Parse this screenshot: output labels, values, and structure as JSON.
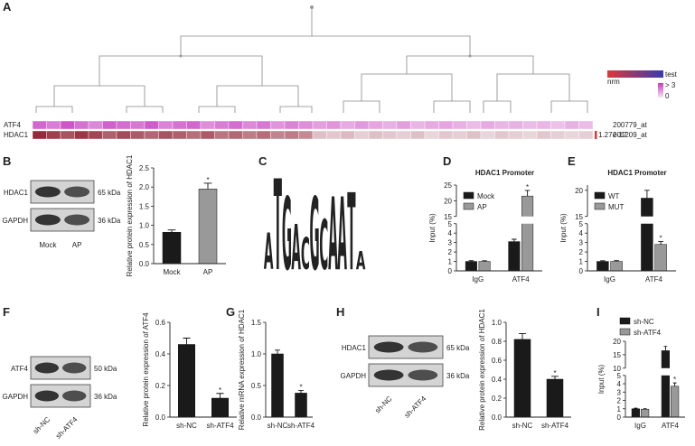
{
  "chart_data": [
    {
      "type": "heatmap",
      "panel": "A",
      "rows": [
        "ATF4",
        "HDAC1"
      ],
      "row_ids": [
        "200779_at",
        "201209_at"
      ],
      "values": [
        [
          2.2,
          1.8,
          2.5,
          2.0,
          1.6,
          2.3,
          2.1,
          1.9,
          2.4,
          1.7,
          2.0,
          2.2,
          1.5,
          1.8,
          2.1,
          1.6,
          1.9,
          1.4,
          1.7,
          1.5,
          1.2,
          1.4,
          1.0,
          1.3,
          1.1,
          0.9,
          1.2,
          0.8,
          1.0,
          1.1,
          0.9,
          0.7,
          1.0,
          0.8,
          0.9,
          0.7,
          0.8,
          0.6,
          0.9,
          0.7
        ],
        [
          2.8,
          2.5,
          2.2,
          2.6,
          2.4,
          2.0,
          2.3,
          2.1,
          1.9,
          2.2,
          2.0,
          1.8,
          2.1,
          1.7,
          1.9,
          1.6,
          1.8,
          1.5,
          1.6,
          1.4,
          0.6,
          0.5,
          0.7,
          0.4,
          0.6,
          0.5,
          0.4,
          0.6,
          0.3,
          0.5,
          0.4,
          0.6,
          0.3,
          0.5,
          0.4,
          0.3,
          0.5,
          0.4,
          0.3,
          0.4
        ]
      ],
      "vlim": [
        0,
        3
      ],
      "colors": [
        {
          "low": "#f7e3f4",
          "high": "#c43bbf"
        },
        {
          "low": "#f3eaee",
          "high": "#8c1d2d"
        }
      ],
      "legend_labels": [
        "nrm",
        "test"
      ],
      "legend_colors": [
        "#d93a3a",
        "#3a3ab0"
      ],
      "scale_labels": [
        "> 3",
        "0"
      ],
      "row_note": "1.27e-17"
    },
    {
      "type": "bar",
      "panel": "B",
      "blot": {
        "bands": [
          "HDAC1",
          "GAPDH"
        ],
        "sizes": [
          "65 kDa",
          "36 kDa"
        ],
        "lanes": [
          "Mock",
          "AP"
        ]
      },
      "ylabel": "Relative protein expression of HDAC1",
      "categories": [
        "Mock",
        "AP"
      ],
      "values": [
        0.82,
        1.95
      ],
      "errors": [
        0.06,
        0.15
      ],
      "colors": [
        "#1a1a1a",
        "#999999"
      ],
      "marks": [
        null,
        "*"
      ],
      "ylim": [
        0,
        2.5
      ],
      "yticks": [
        {
          "value": 0,
          "label": "0.0"
        },
        {
          "value": 0.5,
          "label": "0.5"
        },
        {
          "value": 1,
          "label": "1.0"
        },
        {
          "value": 1.5,
          "label": "1.5"
        },
        {
          "value": 2,
          "label": "2.0"
        },
        {
          "value": 2.5,
          "label": "2.5"
        }
      ]
    },
    {
      "type": "logo",
      "panel": "C",
      "letters": [
        "A",
        "T",
        "G",
        "A",
        "C",
        "G",
        "C",
        "A",
        "A",
        "T",
        "A"
      ],
      "heights": [
        0.8,
        2.0,
        1.6,
        1.0,
        0.7,
        1.6,
        1.1,
        1.6,
        1.6,
        1.7,
        0.4
      ],
      "ylim": [
        0,
        2
      ],
      "colors": {
        "A": "#7ab648",
        "C": "#3b6fb6",
        "G": "#f0a830",
        "T": "#e8342c"
      }
    },
    {
      "type": "grouped_bar",
      "panel": "D",
      "title": "HDAC1  Promoter",
      "ylabel": "Input (%)",
      "categories": [
        "IgG",
        "ATF4"
      ],
      "series": [
        {
          "name": "Mock",
          "color": "#1a1a1a",
          "values": [
            1.0,
            3.1
          ],
          "errors": [
            0.08,
            0.25
          ],
          "marks": [
            null,
            null
          ]
        },
        {
          "name": "AP",
          "color": "#999999",
          "values": [
            1.0,
            21.5
          ],
          "errors": [
            0.07,
            1.8
          ],
          "marks": [
            null,
            "*"
          ]
        }
      ],
      "ylim": [
        0,
        25
      ],
      "ybreak": [
        5,
        15
      ],
      "yticks": [
        0,
        1,
        2,
        3,
        4,
        5,
        15,
        20,
        25
      ],
      "legend": "upper left"
    },
    {
      "type": "grouped_bar",
      "panel": "E",
      "title": "HDAC1  Promoter",
      "ylabel": "Input (%)",
      "categories": [
        "IgG",
        "ATF4"
      ],
      "series": [
        {
          "name": "WT",
          "color": "#1a1a1a",
          "values": [
            1.0,
            18.5
          ],
          "errors": [
            0.07,
            1.5
          ],
          "marks": [
            null,
            null
          ]
        },
        {
          "name": "MUT",
          "color": "#999999",
          "values": [
            1.0,
            2.8
          ],
          "errors": [
            0.08,
            0.3
          ],
          "marks": [
            null,
            "*"
          ]
        }
      ],
      "ylim": [
        0,
        21
      ],
      "ybreak": [
        5,
        15
      ],
      "yticks": [
        0,
        1,
        2,
        3,
        4,
        5,
        15,
        20
      ],
      "legend": "upper left"
    },
    {
      "type": "bar",
      "panel": "F",
      "blot": {
        "bands": [
          "ATF4",
          "GAPDH"
        ],
        "sizes": [
          "50 kDa",
          "36 kDa"
        ],
        "lanes": [
          "sh-NC",
          "sh-ATF4"
        ]
      },
      "ylabel": "Relative protein expression of ATF4",
      "categories": [
        "sh-NC",
        "sh-ATF4"
      ],
      "values": [
        0.46,
        0.12
      ],
      "errors": [
        0.04,
        0.03
      ],
      "colors": [
        "#1a1a1a",
        "#1a1a1a"
      ],
      "marks": [
        null,
        "*"
      ],
      "ylim": [
        0,
        0.6
      ],
      "yticks": [
        {
          "value": 0,
          "label": "0.0"
        },
        {
          "value": 0.2,
          "label": "0.2"
        },
        {
          "value": 0.4,
          "label": "0.4"
        },
        {
          "value": 0.6,
          "label": "0.6"
        }
      ]
    },
    {
      "type": "bar",
      "panel": "G",
      "ylabel": "Relative mRNA expression of HDAC1",
      "categories": [
        "sh-NC",
        "sh-ATF4"
      ],
      "values": [
        1.0,
        0.38
      ],
      "errors": [
        0.06,
        0.04
      ],
      "colors": [
        "#1a1a1a",
        "#1a1a1a"
      ],
      "marks": [
        null,
        "*"
      ],
      "ylim": [
        0,
        1.5
      ],
      "yticks": [
        {
          "value": 0,
          "label": "0.0"
        },
        {
          "value": 0.5,
          "label": "0.5"
        },
        {
          "value": 1,
          "label": "1.0"
        },
        {
          "value": 1.5,
          "label": "1.5"
        }
      ]
    },
    {
      "type": "bar",
      "panel": "H",
      "blot": {
        "bands": [
          "HDAC1",
          "GAPDH"
        ],
        "sizes": [
          "65 kDa",
          "36 kDa"
        ],
        "lanes": [
          "sh-NC",
          "sh-ATF4"
        ]
      },
      "ylabel": "Relative protein expression of HDAC1",
      "categories": [
        "sh-NC",
        "sh-ATF4"
      ],
      "values": [
        0.82,
        0.4
      ],
      "errors": [
        0.06,
        0.03
      ],
      "colors": [
        "#1a1a1a",
        "#1a1a1a"
      ],
      "marks": [
        null,
        "*"
      ],
      "ylim": [
        0,
        1
      ],
      "yticks": [
        {
          "value": 0,
          "label": "0.0"
        },
        {
          "value": 0.2,
          "label": "0.2"
        },
        {
          "value": 0.4,
          "label": "0.4"
        },
        {
          "value": 0.6,
          "label": "0.6"
        },
        {
          "value": 0.8,
          "label": "0.8"
        },
        {
          "value": 1,
          "label": "1.0"
        }
      ]
    },
    {
      "type": "grouped_bar",
      "panel": "I",
      "ylabel": "Input (%)",
      "categories": [
        "IgG",
        "ATF4"
      ],
      "series": [
        {
          "name": "sh-NC",
          "color": "#1a1a1a",
          "values": [
            1.0,
            16.5
          ],
          "errors": [
            0.07,
            1.6
          ],
          "marks": [
            null,
            null
          ]
        },
        {
          "name": "sh-ATF4",
          "color": "#999999",
          "values": [
            0.95,
            3.7
          ],
          "errors": [
            0.05,
            0.4
          ],
          "marks": [
            null,
            "*"
          ]
        }
      ],
      "ylim": [
        0,
        20
      ],
      "ybreak": [
        5,
        10
      ],
      "yticks": [
        0,
        1,
        2,
        3,
        4,
        5,
        10,
        15,
        20
      ],
      "legend": "top"
    }
  ]
}
